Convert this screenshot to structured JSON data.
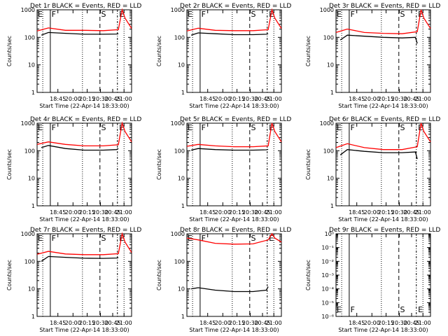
{
  "figure": {
    "xlabel": "Start Time (22-Apr-14 18:33:00)",
    "ylabel": "Counts/sec",
    "x_ticks": [
      "18:45",
      "20:00",
      "20:15",
      "20:30",
      "20:45",
      "21:00"
    ],
    "y_ticks": [
      "1",
      "10",
      "100",
      "1000"
    ],
    "y_ticks_det9": [
      "10⁰",
      "10⁻¹",
      "10⁻²",
      "10⁻³",
      "10⁻⁴",
      "10⁻⁵",
      "10⁻⁶"
    ],
    "colors": {
      "events": "#000000",
      "lld": "#ff0000",
      "axis": "#000000"
    }
  },
  "chart_data": [
    {
      "type": "line",
      "title": "Det 1r BLACK = Events, RED = LLD",
      "ylog": true,
      "ylim": [
        1,
        1000
      ],
      "markers": [
        "E",
        "F",
        "S",
        "E"
      ],
      "series": [
        {
          "name": "Events",
          "color": "#000000",
          "x": [
            0.045,
            0.12,
            0.3,
            0.5,
            0.7,
            0.84,
            0.86
          ],
          "values": [
            120,
            150,
            140,
            130,
            130,
            132,
            135
          ]
        },
        {
          "name": "LLD",
          "color": "#ff0000",
          "x": [
            0.0,
            0.12,
            0.3,
            0.5,
            0.7,
            0.86,
            0.9,
            0.93,
            1.0
          ],
          "values": [
            170,
            220,
            180,
            180,
            175,
            190,
            1000,
            500,
            210
          ]
        }
      ]
    },
    {
      "type": "line",
      "title": "Det 2r BLACK = Events, RED = LLD",
      "ylog": true,
      "ylim": [
        1,
        1000
      ],
      "markers": [
        "E",
        "F",
        "S",
        "E"
      ],
      "series": [
        {
          "name": "Events",
          "color": "#000000",
          "x": [
            0.045,
            0.12,
            0.3,
            0.5,
            0.7,
            0.84,
            0.86
          ],
          "values": [
            120,
            145,
            135,
            125,
            125,
            130,
            135
          ]
        },
        {
          "name": "LLD",
          "color": "#ff0000",
          "x": [
            0.0,
            0.12,
            0.3,
            0.5,
            0.7,
            0.86,
            0.9,
            0.93,
            1.0
          ],
          "values": [
            170,
            215,
            180,
            175,
            175,
            190,
            1000,
            500,
            210
          ]
        }
      ]
    },
    {
      "type": "line",
      "title": "Det 3r BLACK = Events, RED = LLD",
      "ylog": true,
      "ylim": [
        1,
        1000
      ],
      "markers": [
        "E",
        "F",
        "S",
        "E"
      ],
      "series": [
        {
          "name": "Events",
          "color": "#000000",
          "x": [
            0.045,
            0.12,
            0.3,
            0.5,
            0.7,
            0.84,
            0.86
          ],
          "values": [
            80,
            120,
            110,
            100,
            95,
            100,
            60
          ]
        },
        {
          "name": "LLD",
          "color": "#ff0000",
          "x": [
            0.0,
            0.12,
            0.3,
            0.5,
            0.7,
            0.86,
            0.9,
            0.93,
            1.0
          ],
          "values": [
            150,
            200,
            150,
            140,
            135,
            160,
            1000,
            500,
            210
          ]
        }
      ]
    },
    {
      "type": "line",
      "title": "Det 4r BLACK = Events, RED = LLD",
      "ylog": true,
      "ylim": [
        1,
        1000
      ],
      "markers": [
        "E",
        "F",
        "S",
        "E"
      ],
      "series": [
        {
          "name": "Events",
          "color": "#000000",
          "x": [
            0.045,
            0.12,
            0.3,
            0.5,
            0.7,
            0.84,
            0.86
          ],
          "values": [
            130,
            155,
            120,
            105,
            105,
            110,
            120
          ]
        },
        {
          "name": "LLD",
          "color": "#ff0000",
          "x": [
            0.0,
            0.12,
            0.3,
            0.5,
            0.7,
            0.86,
            0.9,
            0.93,
            1.0
          ],
          "values": [
            170,
            210,
            170,
            150,
            150,
            165,
            1000,
            500,
            210
          ]
        }
      ]
    },
    {
      "type": "line",
      "title": "Det 5r BLACK = Events, RED = LLD",
      "ylog": true,
      "ylim": [
        1,
        1000
      ],
      "markers": [
        "E",
        "F",
        "S",
        "E"
      ],
      "series": [
        {
          "name": "Events",
          "color": "#000000",
          "x": [
            0.045,
            0.12,
            0.3,
            0.5,
            0.7,
            0.84,
            0.86
          ],
          "values": [
            105,
            120,
            110,
            105,
            105,
            108,
            112
          ]
        },
        {
          "name": "LLD",
          "color": "#ff0000",
          "x": [
            0.0,
            0.12,
            0.3,
            0.5,
            0.7,
            0.86,
            0.9,
            0.93,
            1.0
          ],
          "values": [
            145,
            170,
            150,
            140,
            140,
            150,
            1000,
            500,
            210
          ]
        }
      ]
    },
    {
      "type": "line",
      "title": "Det 6r BLACK = Events, RED = LLD",
      "ylog": true,
      "ylim": [
        1,
        1000
      ],
      "markers": [
        "E",
        "F",
        "S",
        "E"
      ],
      "series": [
        {
          "name": "Events",
          "color": "#000000",
          "x": [
            0.045,
            0.12,
            0.3,
            0.5,
            0.7,
            0.84,
            0.86
          ],
          "values": [
            70,
            110,
            95,
            85,
            85,
            90,
            50
          ]
        },
        {
          "name": "LLD",
          "color": "#ff0000",
          "x": [
            0.0,
            0.12,
            0.3,
            0.5,
            0.7,
            0.86,
            0.9,
            0.93,
            1.0
          ],
          "values": [
            130,
            180,
            130,
            110,
            110,
            140,
            1000,
            500,
            210
          ]
        }
      ]
    },
    {
      "type": "line",
      "title": "Det 7r BLACK = Events, RED = LLD",
      "ylog": true,
      "ylim": [
        1,
        1000
      ],
      "markers": [
        "E",
        "F",
        "S",
        "E"
      ],
      "series": [
        {
          "name": "Events",
          "color": "#000000",
          "x": [
            0.045,
            0.12,
            0.3,
            0.5,
            0.7,
            0.84,
            0.86
          ],
          "values": [
            100,
            150,
            140,
            130,
            128,
            132,
            135
          ]
        },
        {
          "name": "LLD",
          "color": "#ff0000",
          "x": [
            0.0,
            0.12,
            0.3,
            0.5,
            0.7,
            0.86,
            0.9,
            0.93,
            1.0
          ],
          "values": [
            180,
            230,
            185,
            175,
            175,
            190,
            1000,
            500,
            210
          ]
        }
      ]
    },
    {
      "type": "line",
      "title": "Det 8r BLACK = Events, RED = LLD",
      "ylog": true,
      "ylim": [
        1,
        1000
      ],
      "markers": [
        "E",
        "F",
        "S",
        "E"
      ],
      "series": [
        {
          "name": "Events",
          "color": "#000000",
          "x": [
            0.045,
            0.12,
            0.3,
            0.5,
            0.7,
            0.84,
            0.86
          ],
          "values": [
            10,
            11,
            9,
            8,
            8,
            9,
            12
          ]
        },
        {
          "name": "LLD",
          "color": "#ff0000",
          "x": [
            0.0,
            0.12,
            0.3,
            0.5,
            0.7,
            0.86,
            0.9,
            0.93,
            1.0
          ],
          "values": [
            700,
            600,
            450,
            420,
            430,
            600,
            1000,
            700,
            500
          ]
        }
      ]
    },
    {
      "type": "line",
      "title": "Det 9r BLACK = Events, RED = LLD",
      "ylog": true,
      "ylim": [
        1e-06,
        1
      ],
      "markers": [
        "E",
        "F",
        "S",
        "E"
      ],
      "series": []
    }
  ]
}
